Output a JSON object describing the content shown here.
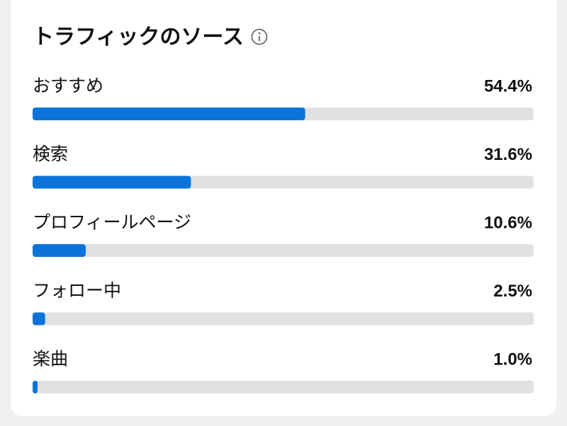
{
  "chart_data": {
    "type": "bar",
    "title": "トラフィックのソース",
    "categories": [
      "おすすめ",
      "検索",
      "プロフィールページ",
      "フォロー中",
      "楽曲"
    ],
    "values": [
      54.4,
      31.6,
      10.6,
      2.5,
      1.0
    ],
    "value_labels": [
      "54.4%",
      "31.6%",
      "10.6%",
      "2.5%",
      "1.0%"
    ],
    "xlim": [
      0,
      100
    ],
    "color": "#0a74da"
  }
}
